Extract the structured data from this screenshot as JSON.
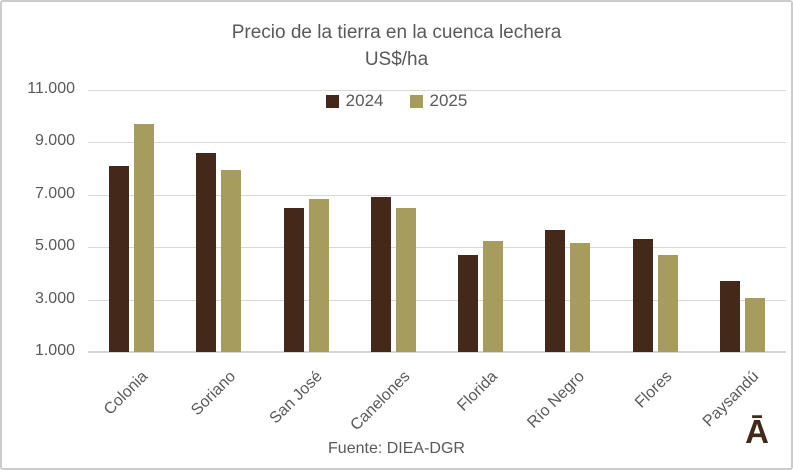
{
  "title": {
    "line1": "Precio de la tierra en la cuenca lechera",
    "line2": "US$/ha"
  },
  "footer": {
    "source": "Fuente: DIEA-DGR",
    "logo": "Ā"
  },
  "colors": {
    "text_gray": "#595959",
    "gridline": "#d9d9d9",
    "series_2024": "#44281a",
    "series_2025": "#a69c5d",
    "logo_brown": "#44281a"
  },
  "chart_data": {
    "type": "bar",
    "title": "Precio de la tierra en la cuenca lechera",
    "subtitle": "US$/ha",
    "categories": [
      "Colonia",
      "Soriano",
      "San José",
      "Canelones",
      "Florida",
      "Río Negro",
      "Flores",
      "Paysandú"
    ],
    "series": [
      {
        "name": "2024",
        "color": "#44281a",
        "values": [
          8100,
          8600,
          6500,
          6900,
          4700,
          5650,
          5300,
          3700
        ]
      },
      {
        "name": "2025",
        "color": "#a69c5d",
        "values": [
          9700,
          7950,
          6850,
          6500,
          5250,
          5150,
          4700,
          3050
        ]
      }
    ],
    "xlabel": "",
    "ylabel": "",
    "ylim": [
      1000,
      11000
    ],
    "ytick_interval": 2000,
    "yticks_values": [
      11000,
      9000,
      7000,
      5000,
      3000,
      1000
    ],
    "yticks_labels": [
      "11.000",
      "9.000",
      "7.000",
      "5.000",
      "3.000",
      "1.000"
    ],
    "grid": true,
    "legend_position": "top-center",
    "source": "Fuente: DIEA-DGR"
  }
}
